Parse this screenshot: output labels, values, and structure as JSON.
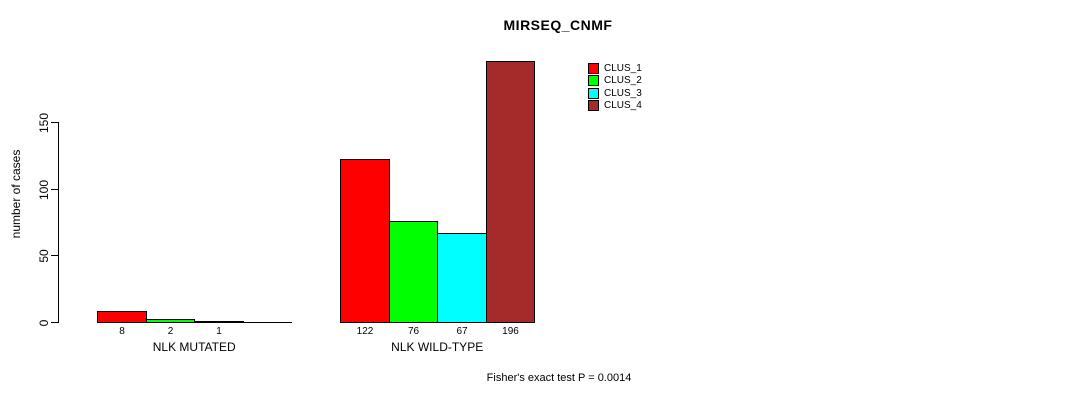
{
  "chart_data": {
    "type": "bar",
    "title": "MIRSEQ_CNMF",
    "ylabel": "number of cases",
    "xlabel": "",
    "ylim": [
      0,
      150
    ],
    "yticks": [
      0,
      50,
      100,
      150
    ],
    "grid": false,
    "legend_position": "top-right",
    "categories": [
      "NLK MUTATED",
      "NLK WILD-TYPE"
    ],
    "series": [
      {
        "name": "CLUS_1",
        "color": "#FF0000",
        "values": [
          8,
          122
        ]
      },
      {
        "name": "CLUS_2",
        "color": "#00FF00",
        "values": [
          2,
          76
        ]
      },
      {
        "name": "CLUS_3",
        "color": "#00FFFF",
        "values": [
          1,
          67
        ]
      },
      {
        "name": "CLUS_4",
        "color": "#A52A2A",
        "values": [
          0,
          196
        ]
      }
    ],
    "bar_value_labels": [
      [
        "8",
        "2",
        "1",
        ""
      ],
      [
        "122",
        "76",
        "67",
        "196"
      ]
    ],
    "annotation": "Fisher's exact test P = 0.0014",
    "axis_color": "#000000",
    "background": "#FFFFFF"
  }
}
